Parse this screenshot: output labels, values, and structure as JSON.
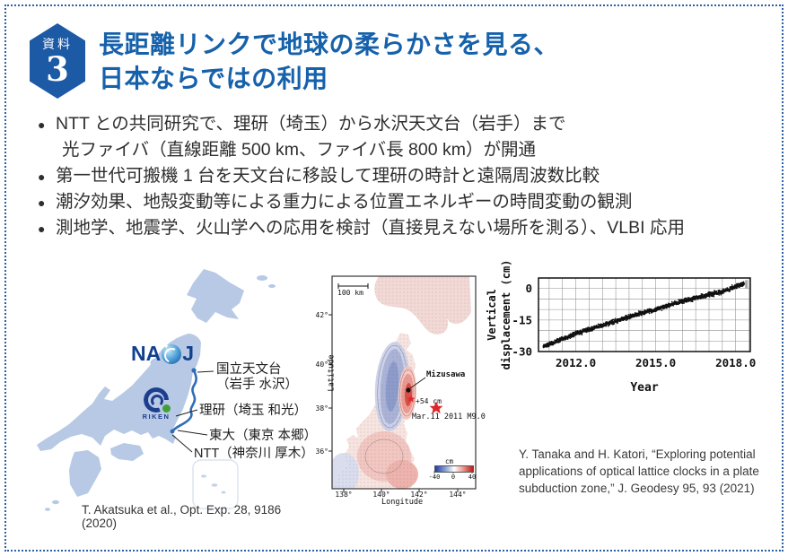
{
  "header": {
    "badge_top": "資料",
    "badge_number": "3",
    "title_line1": "長距離リンクで地球の柔らかさを見る、",
    "title_line2": "日本ならではの利用",
    "title_color": "#1661ab"
  },
  "bullets": [
    {
      "marker": "●",
      "text": "NTT との共同研究で、理研（埼玉）から水沢天文台（岩手）まで",
      "cont": false
    },
    {
      "marker": "",
      "text": "光ファイバ（直線距離 500 km、ファイバ長 800 km）が開通",
      "cont": true
    },
    {
      "marker": "●",
      "text": "第一世代可搬機 1 台を天文台に移設して理研の時計と遠隔周波数比較",
      "cont": false
    },
    {
      "marker": "●",
      "text": "潮汐効果、地殻変動等による重力による位置エネルギーの時間変動の観測",
      "cont": false
    },
    {
      "marker": "●",
      "text": "測地学、地震学、火山学への応用を検討（直接見えない場所を測る）、VLBI 応用",
      "cont": false
    }
  ],
  "japan_map": {
    "naoj_logo_left": "NA",
    "naoj_logo_right": "J",
    "riken_logo": "RIKEN",
    "naoj_site_line1": "国立天文台",
    "naoj_site_line2": "（岩手 水沢）",
    "riken_site": "理研（埼玉 和光）",
    "todai_site": "東大（東京 本郷）",
    "ntt_site": "NTT（神奈川 厚木）",
    "citation": "T. Akatsuka et al., Opt. Exp. 28, 9186 (2020)",
    "fiber_color": "#2f6db8",
    "land_color": "#b7c9e4"
  },
  "uplift_map": {
    "scale_bar": "100 km",
    "ylabel": "Latitude",
    "xlabel": "Longitude",
    "lat_ticks": [
      "42°",
      "40°",
      "38°",
      "36°"
    ],
    "lon_ticks": [
      "138°",
      "140°",
      "142°",
      "144°"
    ],
    "station_label": "Mizusawa",
    "uplift_label": "+54 cm",
    "quake_label": "Mar.11 2011 M9.0",
    "colorbar_label": "cm",
    "colorbar_ticks": [
      "-40",
      "0",
      "40"
    ],
    "star_color": "#e0262a"
  },
  "chart_data": {
    "type": "scatter",
    "title": "",
    "xlabel": "Year",
    "ylabel": "Vertical displacement (cm)",
    "xlim": [
      2010.6,
      2018.55
    ],
    "ylim": [
      -30,
      5
    ],
    "x_ticks": [
      2012.0,
      2015.0,
      2018.0
    ],
    "y_ticks": [
      0,
      -15,
      -30
    ],
    "grid": true,
    "grid_step_x_years": 0.5,
    "grid_step_y_cm": 5,
    "series": [
      {
        "name": "Mizusawa vertical displacement",
        "marker_color": "#111111",
        "points_sample": [
          [
            2010.78,
            -27.5
          ],
          [
            2011.0,
            -26.5
          ],
          [
            2011.5,
            -24.0
          ],
          [
            2012.0,
            -21.5
          ],
          [
            2012.5,
            -19.5
          ],
          [
            2013.0,
            -17.5
          ],
          [
            2013.5,
            -15.5
          ],
          [
            2014.0,
            -13.5
          ],
          [
            2014.5,
            -11.5
          ],
          [
            2015.0,
            -10.0
          ],
          [
            2015.5,
            -8.0
          ],
          [
            2016.0,
            -6.0
          ],
          [
            2016.5,
            -4.5
          ],
          [
            2017.0,
            -3.0
          ],
          [
            2017.5,
            -1.5
          ],
          [
            2018.0,
            1.0
          ],
          [
            2018.3,
            2.0
          ]
        ],
        "noise_band_cm": 3.0
      }
    ]
  },
  "citation_right": {
    "line1": "Y. Tanaka and H. Katori, “Exploring potential",
    "line2": "applications of optical lattice clocks in a plate",
    "line3": "subduction zone,” J. Geodesy 95, 93 (2021)"
  }
}
